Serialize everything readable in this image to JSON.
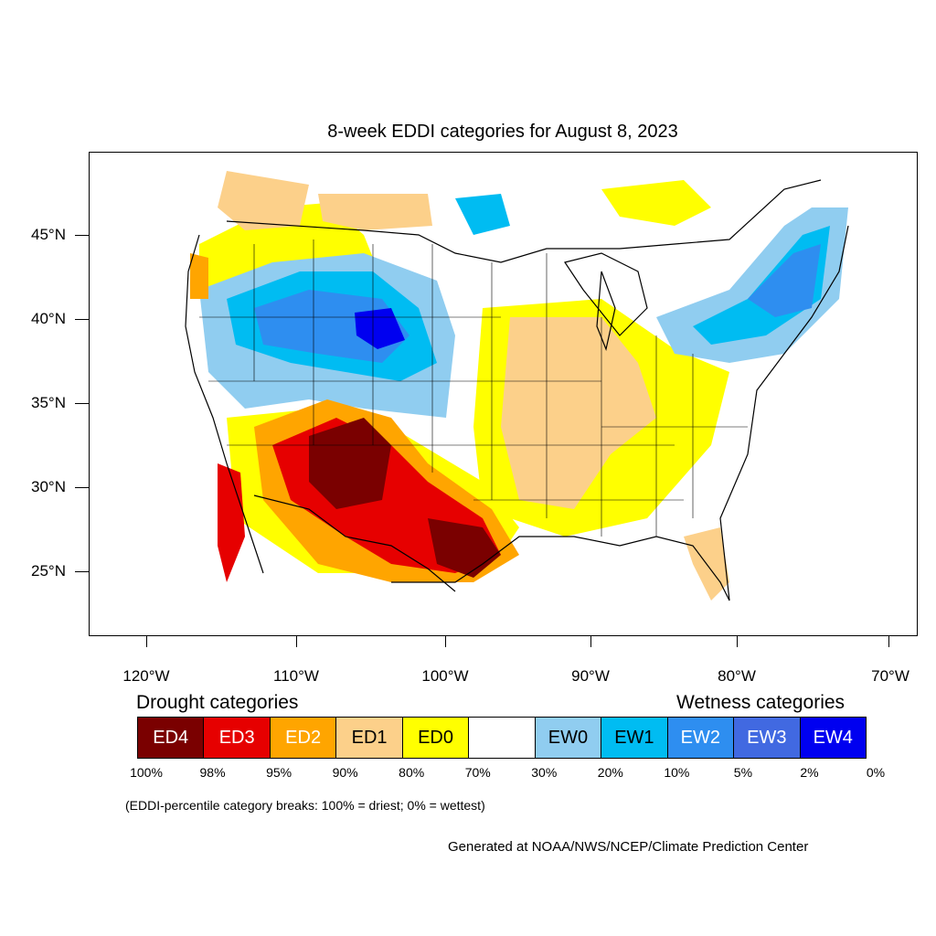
{
  "title": "8-week EDDI categories for August 8, 2023",
  "axes": {
    "lat_labels": [
      "45°N",
      "40°N",
      "35°N",
      "30°N",
      "25°N"
    ],
    "lon_labels": [
      "120°W",
      "110°W",
      "100°W",
      "90°W",
      "80°W",
      "70°W"
    ]
  },
  "legend": {
    "drought_heading": "Drought categories",
    "wetness_heading": "Wetness categories",
    "categories": [
      {
        "label": "ED4",
        "color": "#7a0000",
        "text_color": "#ffffff"
      },
      {
        "label": "ED3",
        "color": "#e60000",
        "text_color": "#ffffff"
      },
      {
        "label": "ED2",
        "color": "#ffa500",
        "text_color": "#ffffff"
      },
      {
        "label": "ED1",
        "color": "#fcd08a",
        "text_color": "#000000"
      },
      {
        "label": "ED0",
        "color": "#ffff00",
        "text_color": "#000000"
      },
      {
        "label": "",
        "color": "#ffffff",
        "text_color": "#000000"
      },
      {
        "label": "EW0",
        "color": "#90cdf0",
        "text_color": "#000000"
      },
      {
        "label": "EW1",
        "color": "#00bcf2",
        "text_color": "#000000"
      },
      {
        "label": "EW2",
        "color": "#2e8ef0",
        "text_color": "#ffffff"
      },
      {
        "label": "EW3",
        "color": "#4169e1",
        "text_color": "#ffffff"
      },
      {
        "label": "EW4",
        "color": "#0000f0",
        "text_color": "#ffffff"
      }
    ],
    "breaks": [
      "100%",
      "98%",
      "95%",
      "90%",
      "80%",
      "70%",
      "30%",
      "20%",
      "10%",
      "5%",
      "2%",
      "0%"
    ]
  },
  "note": "(EDDI-percentile category breaks: 100% = driest; 0% = wettest)",
  "credit": "Generated at NOAA/NWS/NCEP/Climate Prediction Center"
}
